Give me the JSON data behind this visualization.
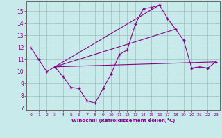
{
  "xlabel": "Windchill (Refroidissement éolien,°C)",
  "background_color": "#c8eaea",
  "line_color": "#880088",
  "xlim": [
    -0.5,
    23.5
  ],
  "ylim": [
    6.8,
    15.8
  ],
  "yticks": [
    7,
    8,
    9,
    10,
    11,
    12,
    13,
    14,
    15
  ],
  "xticks": [
    0,
    1,
    2,
    3,
    4,
    5,
    6,
    7,
    8,
    9,
    10,
    11,
    12,
    13,
    14,
    15,
    16,
    17,
    18,
    19,
    20,
    21,
    22,
    23
  ],
  "series": [
    [
      0,
      12.0
    ],
    [
      1,
      11.0
    ],
    [
      2,
      10.0
    ],
    [
      3,
      10.4
    ],
    [
      4,
      9.6
    ],
    [
      5,
      8.7
    ],
    [
      6,
      8.6
    ],
    [
      7,
      7.6
    ],
    [
      8,
      7.4
    ],
    [
      9,
      8.6
    ],
    [
      10,
      9.8
    ],
    [
      11,
      11.4
    ],
    [
      12,
      11.8
    ],
    [
      13,
      13.9
    ],
    [
      14,
      15.2
    ],
    [
      15,
      15.3
    ],
    [
      16,
      15.5
    ],
    [
      17,
      14.4
    ],
    [
      18,
      13.5
    ],
    [
      19,
      12.6
    ],
    [
      20,
      10.3
    ],
    [
      21,
      10.4
    ],
    [
      22,
      10.3
    ],
    [
      23,
      10.8
    ]
  ],
  "line1": [
    [
      3,
      10.4
    ],
    [
      23,
      10.8
    ]
  ],
  "line2": [
    [
      3,
      10.4
    ],
    [
      16,
      15.5
    ]
  ],
  "line3": [
    [
      3,
      10.4
    ],
    [
      18,
      13.5
    ]
  ]
}
